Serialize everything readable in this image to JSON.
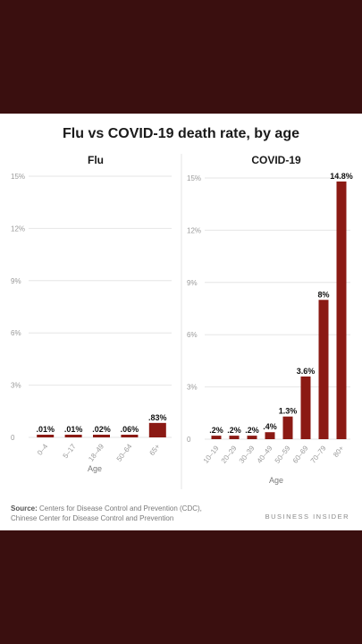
{
  "title": "Flu vs COVID-19 death rate, by age",
  "colors": {
    "bar": "#8b1a14",
    "grid": "#e6e6e6",
    "background": "#3a0f0f"
  },
  "source": {
    "label": "Source:",
    "line1": "Centers for Disease Control and Prevention (CDC),",
    "line2": "Chinese Center for Disease Control and Prevention"
  },
  "brand": "BUSINESS INSIDER",
  "chart_data": [
    {
      "type": "bar",
      "title": "Flu",
      "xlabel": "Age",
      "ylabel": "",
      "ylim": [
        0,
        15
      ],
      "yticks": [
        0,
        3,
        6,
        9,
        12,
        15
      ],
      "ytick_labels": [
        "0",
        "3%",
        "6%",
        "9%",
        "12%",
        "15%"
      ],
      "categories": [
        "0–4",
        "5–17",
        "18–49",
        "50–64",
        "65+"
      ],
      "values": [
        0.01,
        0.01,
        0.02,
        0.06,
        0.83
      ],
      "data_labels": [
        ".01%",
        ".01%",
        ".02%",
        ".06%",
        ".83%"
      ],
      "grid": true
    },
    {
      "type": "bar",
      "title": "COVID-19",
      "xlabel": "Age",
      "ylabel": "",
      "ylim": [
        0,
        15
      ],
      "yticks": [
        0,
        3,
        6,
        9,
        12,
        15
      ],
      "ytick_labels": [
        "0",
        "3%",
        "6%",
        "9%",
        "12%",
        "15%"
      ],
      "categories": [
        "10–19",
        "20–29",
        "30–39",
        "40–49",
        "50–59",
        "60–69",
        "70–79",
        "80+"
      ],
      "values": [
        0.2,
        0.2,
        0.2,
        0.4,
        1.3,
        3.6,
        8,
        14.8
      ],
      "data_labels": [
        ".2%",
        ".2%",
        ".2%",
        ".4%",
        "1.3%",
        "3.6%",
        "8%",
        "14.8%"
      ],
      "grid": true
    }
  ]
}
